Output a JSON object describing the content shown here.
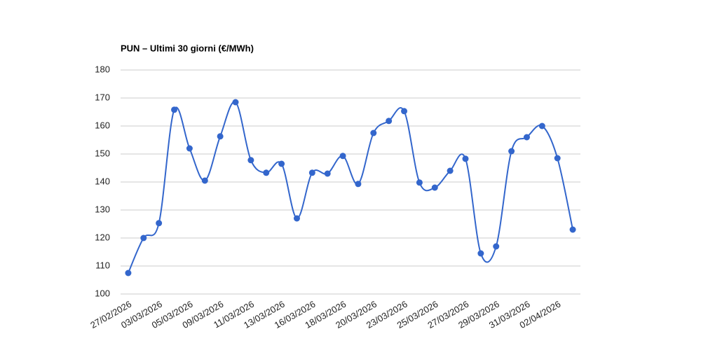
{
  "chart_data": {
    "type": "line",
    "title": "PUN – Ultimi 30 giorni (€/MWh)",
    "categories": [
      "27/02/2026",
      null,
      "03/03/2026",
      null,
      "05/03/2026",
      null,
      "09/03/2026",
      null,
      "11/03/2026",
      null,
      "13/03/2026",
      null,
      "16/03/2026",
      null,
      "18/03/2026",
      null,
      "20/03/2026",
      null,
      "23/03/2026",
      null,
      "25/03/2026",
      null,
      "27/03/2026",
      null,
      "29/03/2026",
      null,
      "31/03/2026",
      null,
      "02/04/2026",
      null
    ],
    "values": [
      107.5,
      120,
      125.3,
      165.8,
      152,
      140.5,
      156.3,
      168.5,
      147.8,
      143.3,
      146.5,
      127,
      143.3,
      143,
      149.3,
      139.3,
      157.5,
      161.8,
      165.3,
      139.8,
      138,
      144,
      148.3,
      114.5,
      117,
      151,
      156,
      160,
      148.5,
      123
    ],
    "color": "#3366cc",
    "smooth": true,
    "ylim": [
      100,
      180
    ],
    "yticks": [
      100,
      110,
      120,
      130,
      140,
      150,
      160,
      170,
      180
    ],
    "grid": true
  }
}
